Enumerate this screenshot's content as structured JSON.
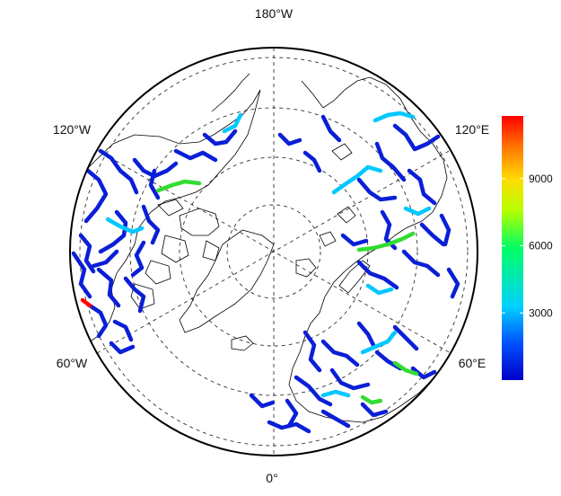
{
  "map": {
    "projection": "north-polar-stereographic",
    "meridian_labels": {
      "top": "180°W",
      "bottom": "0°",
      "upper_left": "120°W",
      "upper_right": "120°E",
      "lower_left": "60°W",
      "lower_right": "60°E"
    },
    "colorbar": {
      "ticks": [
        "9000",
        "6000",
        "3000"
      ],
      "tick_values": [
        9000,
        6000,
        3000
      ],
      "min": 0,
      "max": 11800,
      "colors": [
        "#0000c8",
        "#0050ff",
        "#00d2ff",
        "#00ff64",
        "#b4ff00",
        "#ffdc00",
        "#ff7800",
        "#ff0000"
      ]
    },
    "colors": {
      "background": "#ffffff",
      "coastline": "#000000",
      "grid": "#333333",
      "river_low": "#0a1fd6",
      "river_mid": "#00c8ff",
      "river_high": "#32dc32",
      "river_max": "#ff0000"
    }
  }
}
